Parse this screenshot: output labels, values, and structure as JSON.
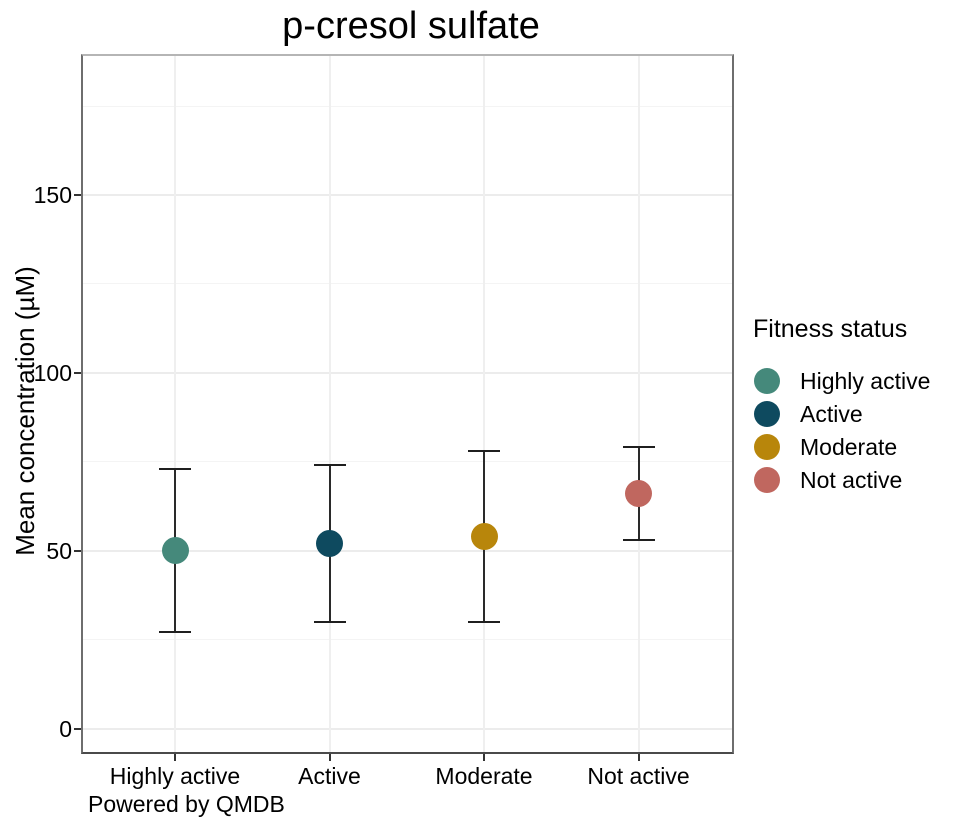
{
  "chart_data": {
    "type": "scatter",
    "title": "p-cresol sulfate",
    "xlabel": "",
    "ylabel": "Mean concentration (µM)",
    "caption": "Powered by QMDB",
    "categories": [
      "Highly active",
      "Active",
      "Moderate",
      "Not active"
    ],
    "series": [
      {
        "name": "Mean concentration",
        "values": [
          50,
          52,
          54,
          66
        ],
        "error_low": [
          27,
          30,
          30,
          53
        ],
        "error_high": [
          73,
          74,
          78,
          79
        ],
        "colors": [
          "#45897B",
          "#0E4A5F",
          "#B8860B",
          "#C0675F"
        ]
      }
    ],
    "y_ticks": [
      0,
      50,
      100,
      150
    ],
    "y_minor_gridlines": [
      25,
      75,
      125,
      175
    ],
    "ylim": [
      -7,
      189
    ],
    "grid": true,
    "legend": {
      "title": "Fitness status",
      "position": "right",
      "entries": [
        {
          "label": "Highly active",
          "color": "#45897B"
        },
        {
          "label": "Active",
          "color": "#0E4A5F"
        },
        {
          "label": "Moderate",
          "color": "#B8860B"
        },
        {
          "label": "Not active",
          "color": "#C0675F"
        }
      ]
    },
    "colors": {
      "panel_background": "#ffffff",
      "major_gridline": "#ececec",
      "minor_gridline": "#f4f4f4",
      "errorbar": "#2a2a2a",
      "axis_text": "#000000"
    }
  }
}
